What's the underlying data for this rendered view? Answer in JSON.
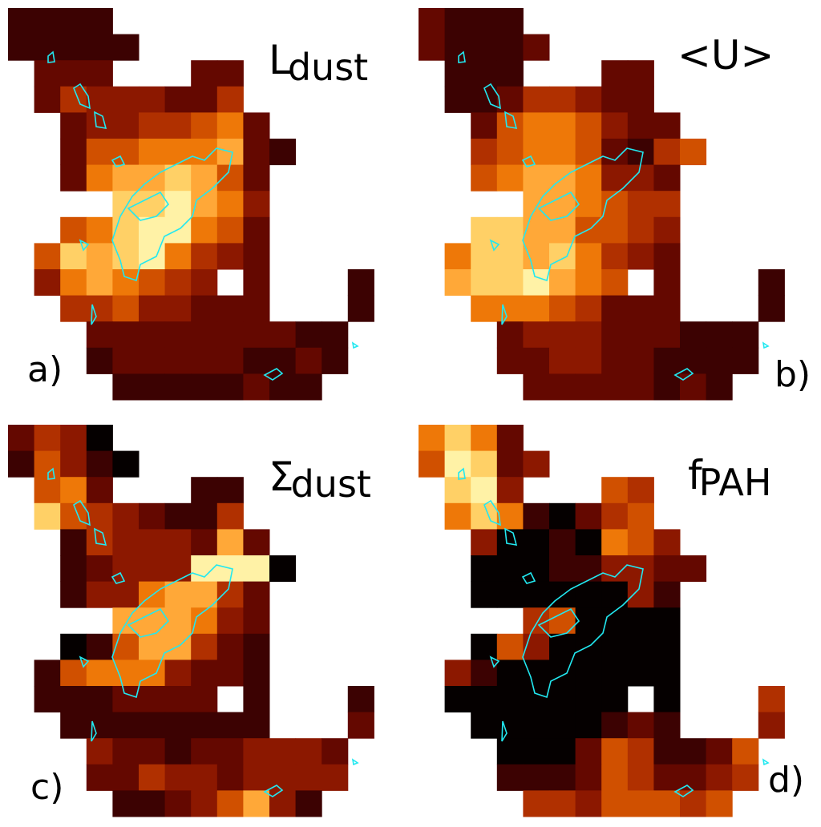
{
  "panels": [
    {
      "title": {
        "main": "L",
        "sub": "dust"
      },
      "label": "a)"
    },
    {
      "title": {
        "main": "<U>"
      },
      "label": "b)"
    },
    {
      "title": {
        "main": "Σ",
        "sub": "dust"
      },
      "label": "c)"
    },
    {
      "title": {
        "main": "f",
        "sub": "PAH"
      },
      "label": "d)"
    }
  ]
}
